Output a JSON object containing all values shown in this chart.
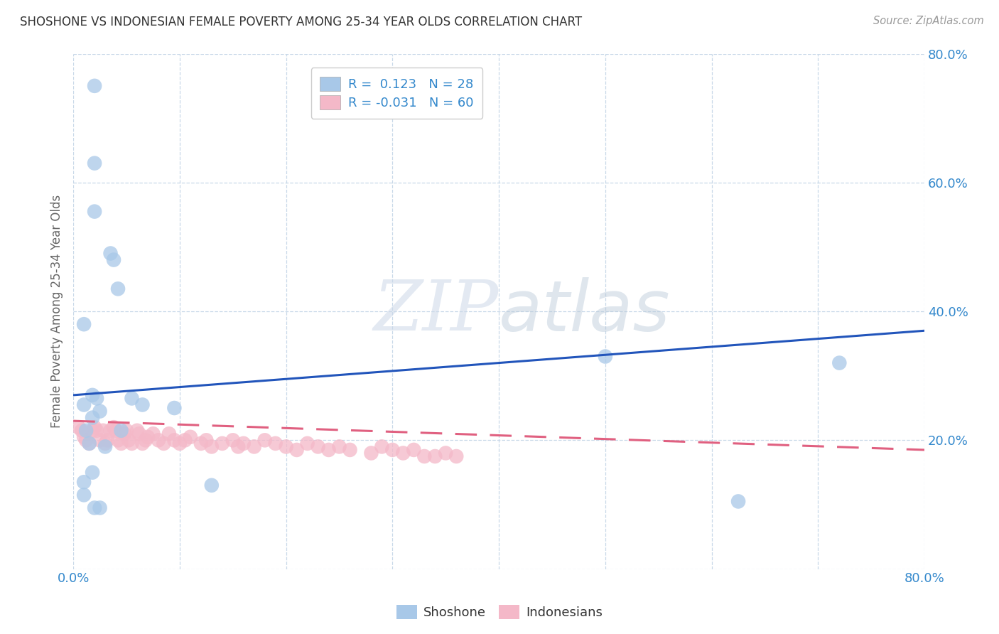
{
  "title": "SHOSHONE VS INDONESIAN FEMALE POVERTY AMONG 25-34 YEAR OLDS CORRELATION CHART",
  "source": "Source: ZipAtlas.com",
  "ylabel": "Female Poverty Among 25-34 Year Olds",
  "xlim": [
    0.0,
    0.8
  ],
  "ylim": [
    0.0,
    0.8
  ],
  "watermark_zip": "ZIP",
  "watermark_atlas": "atlas",
  "shoshone_color": "#a8c8e8",
  "indonesian_color": "#f4b8c8",
  "shoshone_line_color": "#2255bb",
  "indonesian_line_color": "#e06080",
  "shoshone_R": 0.123,
  "shoshone_N": 28,
  "indonesian_R": -0.031,
  "indonesian_N": 60,
  "shoshone_x": [
    0.02,
    0.02,
    0.02,
    0.035,
    0.038,
    0.042,
    0.01,
    0.018,
    0.022,
    0.01,
    0.025,
    0.018,
    0.012,
    0.015,
    0.03,
    0.055,
    0.065,
    0.095,
    0.13,
    0.625,
    0.72,
    0.018,
    0.01,
    0.01,
    0.02,
    0.025,
    0.045,
    0.5
  ],
  "shoshone_y": [
    0.75,
    0.63,
    0.555,
    0.49,
    0.48,
    0.435,
    0.38,
    0.27,
    0.265,
    0.255,
    0.245,
    0.235,
    0.215,
    0.195,
    0.19,
    0.265,
    0.255,
    0.25,
    0.13,
    0.105,
    0.32,
    0.15,
    0.135,
    0.115,
    0.095,
    0.095,
    0.215,
    0.33
  ],
  "indonesian_x": [
    0.005,
    0.008,
    0.01,
    0.012,
    0.015,
    0.018,
    0.02,
    0.022,
    0.025,
    0.028,
    0.03,
    0.032,
    0.035,
    0.038,
    0.04,
    0.042,
    0.045,
    0.048,
    0.05,
    0.052,
    0.055,
    0.06,
    0.062,
    0.065,
    0.068,
    0.07,
    0.075,
    0.08,
    0.085,
    0.09,
    0.095,
    0.1,
    0.105,
    0.11,
    0.12,
    0.125,
    0.13,
    0.14,
    0.15,
    0.155,
    0.16,
    0.17,
    0.18,
    0.19,
    0.2,
    0.21,
    0.22,
    0.23,
    0.24,
    0.25,
    0.26,
    0.28,
    0.29,
    0.3,
    0.31,
    0.32,
    0.33,
    0.34,
    0.35,
    0.36
  ],
  "indonesian_y": [
    0.22,
    0.215,
    0.205,
    0.2,
    0.195,
    0.215,
    0.22,
    0.215,
    0.2,
    0.215,
    0.195,
    0.2,
    0.215,
    0.22,
    0.215,
    0.2,
    0.195,
    0.21,
    0.215,
    0.2,
    0.195,
    0.215,
    0.21,
    0.195,
    0.2,
    0.205,
    0.21,
    0.2,
    0.195,
    0.21,
    0.2,
    0.195,
    0.2,
    0.205,
    0.195,
    0.2,
    0.19,
    0.195,
    0.2,
    0.19,
    0.195,
    0.19,
    0.2,
    0.195,
    0.19,
    0.185,
    0.195,
    0.19,
    0.185,
    0.19,
    0.185,
    0.18,
    0.19,
    0.185,
    0.18,
    0.185,
    0.175,
    0.175,
    0.18,
    0.175
  ],
  "grid_color": "#c8d8e8",
  "tick_color": "#3388cc",
  "ylabel_color": "#666666",
  "title_color": "#333333",
  "source_color": "#999999"
}
